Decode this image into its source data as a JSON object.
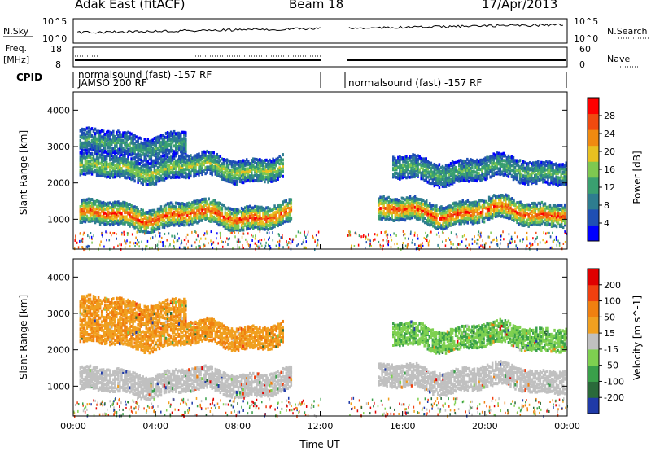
{
  "header": {
    "site": "Adak East (fitACF)",
    "beam": "Beam 18",
    "date": "17/Apr/2013"
  },
  "status_panels": {
    "nsky_label": "N.Sky",
    "nsearch_label": "N.Search",
    "freq_label": "Freq.",
    "freq_unit": "[MHz]",
    "nave_label": "Nave",
    "cpid_label": "CPID",
    "nsky_ticks": [
      "10^5",
      "10^0"
    ],
    "nsearch_ticks": [
      "10^5",
      "10^0"
    ],
    "freq_ticks": [
      "18",
      "8"
    ],
    "nave_ticks": [
      "60",
      "0"
    ],
    "cpid_text_left": "normalsound (fast) -157 RF",
    "cpid_text_left_overlap": "JAMSO 200 RF",
    "cpid_text_right": "normalsound (fast) -157 RF"
  },
  "chart_data": [
    {
      "type": "heatmap",
      "title": "Power",
      "ylabel": "Slant Range [km]",
      "xlabel": "Time UT",
      "x_ticks": [
        "00:00",
        "04:00",
        "08:00",
        "12:00",
        "16:00",
        "20:00",
        "00:00"
      ],
      "y_ticks": [
        "1000",
        "2000",
        "3000",
        "4000"
      ],
      "ylim": [
        180,
        4500
      ],
      "xlim_hours": [
        0,
        24
      ],
      "data_gap_hours": [
        12,
        13.3
      ],
      "colorbar": {
        "label": "Power [dB]",
        "ticks": [
          "28",
          "24",
          "20",
          "16",
          "12",
          "8",
          "4"
        ],
        "colors": [
          "#0000ff",
          "#1f4fb4",
          "#2e7d8f",
          "#3aa070",
          "#7ec850",
          "#e8c020",
          "#f08a10",
          "#f04a10",
          "#ff0000"
        ]
      },
      "bands": [
        {
          "name": "main",
          "t_start": 0.3,
          "t_end": 10.6,
          "range_center_km": 1150,
          "level": 0.85
        },
        {
          "name": "upper-1",
          "t_start": 0.3,
          "t_end": 10.2,
          "range_center_km": 2450,
          "level": 0.55
        },
        {
          "name": "upper-2",
          "t_start": 0.3,
          "t_end": 5.5,
          "range_center_km": 3100,
          "level": 0.4
        },
        {
          "name": "main-2",
          "t_start": 14.8,
          "t_end": 23.9,
          "range_center_km": 1250,
          "level": 0.85
        },
        {
          "name": "upper-3",
          "t_start": 15.5,
          "t_end": 23.9,
          "range_center_km": 2400,
          "level": 0.45
        }
      ]
    },
    {
      "type": "heatmap",
      "title": "Velocity",
      "ylabel": "Slant Range [km]",
      "xlabel": "Time UT",
      "x_ticks": [
        "00:00",
        "04:00",
        "08:00",
        "12:00",
        "16:00",
        "20:00",
        "00:00"
      ],
      "y_ticks": [
        "1000",
        "2000",
        "3000",
        "4000"
      ],
      "ylim": [
        180,
        4500
      ],
      "xlim_hours": [
        0,
        24
      ],
      "data_gap_hours": [
        12,
        13.3
      ],
      "colorbar": {
        "label": "Velocity [m s^-1]",
        "ticks": [
          "200",
          "100",
          "50",
          "15",
          "-15",
          "-50",
          "-100",
          "-200"
        ],
        "colors": [
          "#1f3aa8",
          "#2a6a3a",
          "#3aa04a",
          "#7ed050",
          "#c0c0c0",
          "#f0a020",
          "#f08010",
          "#f04010",
          "#e00000"
        ]
      }
    }
  ]
}
